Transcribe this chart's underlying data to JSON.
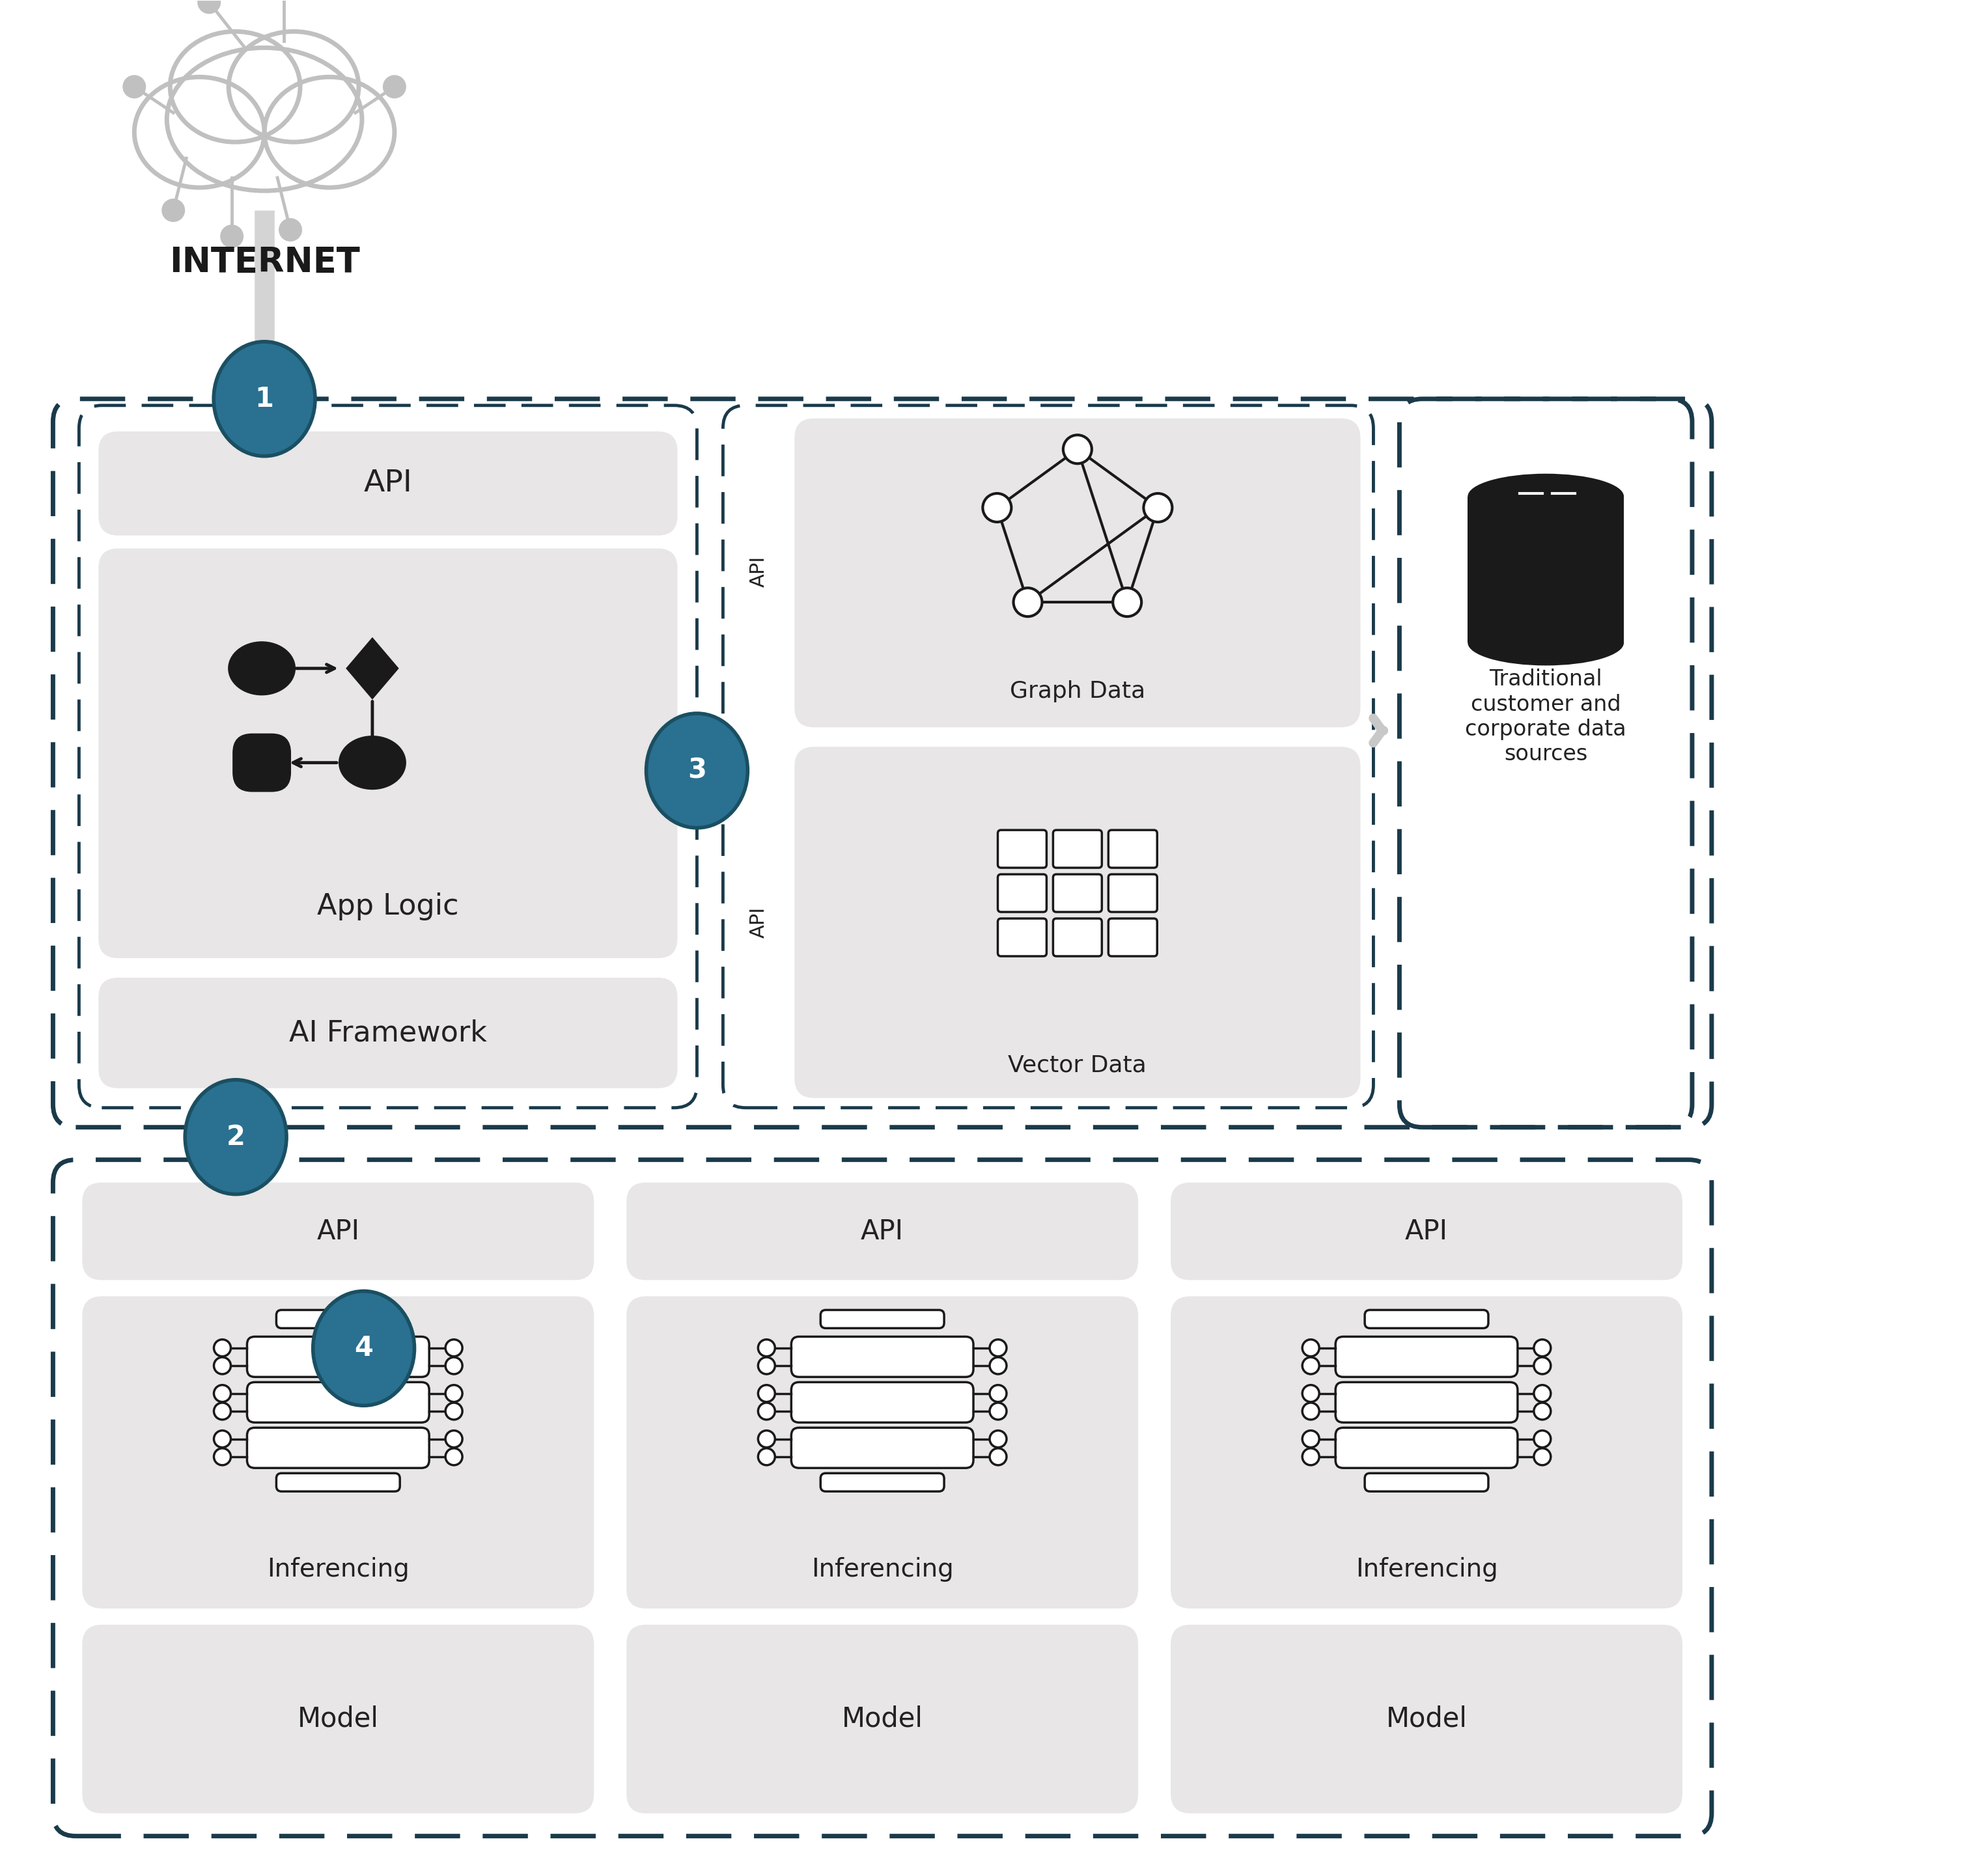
{
  "bg_color": "#ffffff",
  "dashed_color": "#1a3a4a",
  "box_gray": "#e8e6e6",
  "teal": "#2a7090",
  "teal_dark": "#1a4f62",
  "text_dark": "#222222",
  "icon_gray": "#c0c0c0",
  "icon_dark": "#1a1a1a",
  "internet_label": "INTERNET",
  "api_label": "API",
  "app_logic_label": "App Logic",
  "ai_framework_label": "AI Framework",
  "graph_data_label": "Graph Data",
  "vector_data_label": "Vector Data",
  "inferencing_label": "Inferencing",
  "model_label": "Model",
  "traditional_label": "Traditional\ncustomer and\ncorporate data\nsources"
}
